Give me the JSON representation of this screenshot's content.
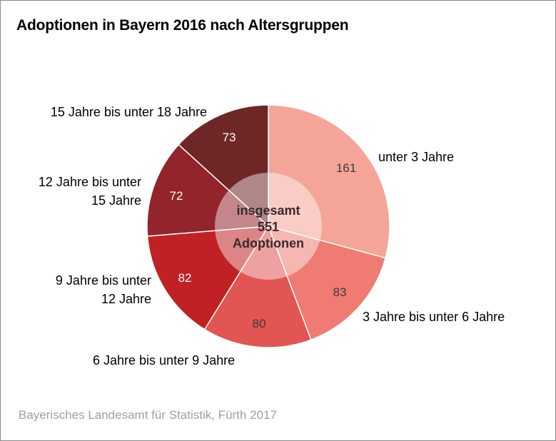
{
  "title": "Adoptionen in Bayern 2016 nach Altersgruppen",
  "source": "Bayerisches Landesamt für Statistik, Fürth 2017",
  "chart_data": {
    "type": "pie",
    "variant": "donut-with-semi-transparent-center",
    "title": "Adoptionen in Bayern 2016 nach Altersgruppen",
    "total": 551,
    "center_label": [
      "insgesamt",
      "551",
      "Adoptionen"
    ],
    "start_angle": "12 o'clock",
    "direction": "clockwise",
    "slices": [
      {
        "label": "unter 3 Jahre",
        "label_lines": [
          "unter 3 Jahre"
        ],
        "value": 161,
        "color": "#F4A597",
        "value_color": "#3a3a3a",
        "label_side": "right"
      },
      {
        "label": "3 Jahre bis unter 6 Jahre",
        "label_lines": [
          "3 Jahre bis unter 6 Jahre"
        ],
        "value": 83,
        "color": "#EF7B73",
        "value_color": "#3a3a3a",
        "label_side": "right"
      },
      {
        "label": "6 Jahre bis unter 9 Jahre",
        "label_lines": [
          "6 Jahre bis unter 9 Jahre"
        ],
        "value": 80,
        "color": "#E15552",
        "value_color": "#3a3a3a",
        "label_side": "bottom"
      },
      {
        "label": "9 Jahre bis unter 12 Jahre",
        "label_lines": [
          "9 Jahre bis unter",
          "12 Jahre"
        ],
        "value": 82,
        "color": "#BF2124",
        "value_color": "#ffffff",
        "label_side": "left"
      },
      {
        "label": "12 Jahre bis unter 15 Jahre",
        "label_lines": [
          "12 Jahre bis unter",
          "15 Jahre"
        ],
        "value": 72,
        "color": "#93242B",
        "value_color": "#ffffff",
        "label_side": "left"
      },
      {
        "label": "15 Jahre bis unter 18 Jahre",
        "label_lines": [
          "15 Jahre bis unter 18 Jahre"
        ],
        "value": 73,
        "color": "#6E2627",
        "value_color": "#ffffff",
        "label_side": "top-left"
      }
    ]
  }
}
